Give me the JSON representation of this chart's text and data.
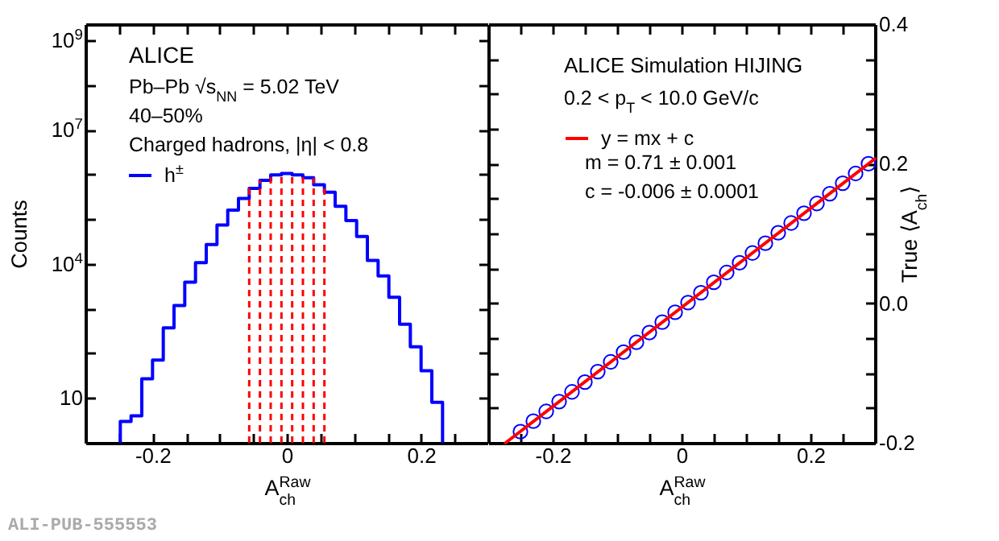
{
  "chart_data": [
    {
      "type": "histogram",
      "xlabel": "A$_{ch}$$^{Raw}$",
      "ylabel": "Counts",
      "log": "y",
      "legend": "top left",
      "bins": [
        -0.248,
        -0.232,
        -0.216,
        -0.2,
        -0.184,
        -0.168,
        -0.152,
        -0.136,
        -0.12,
        -0.104,
        -0.088,
        -0.072,
        -0.056,
        -0.04,
        -0.024,
        -0.008,
        0.008,
        0.024,
        0.04,
        0.056,
        0.072,
        0.088,
        0.104,
        0.12,
        0.136,
        0.152,
        0.168,
        0.184,
        0.2,
        0.216,
        0.232
      ],
      "series": [
        {
          "name": "h$^{±}$",
          "color": "#0000ff",
          "values": [
            3,
            4,
            27,
            71,
            370,
            1170,
            3900,
            10700,
            27000,
            74000,
            160000,
            290000,
            490000,
            740000,
            980000,
            1050000,
            980000,
            850000,
            590000,
            400000,
            195000,
            93000,
            41000,
            12000,
            5400,
            1800,
            450,
            140,
            41,
            8
          ]
        }
      ],
      "xlim": [
        -0.3,
        0.3
      ],
      "xticks": [
        {
          "value": -0.25,
          "label": null
        },
        -0.2,
        {
          "value": -0.15,
          "label": null
        },
        {
          "value": -0.1,
          "label": null
        },
        {
          "value": -0.05,
          "label": null
        },
        0,
        {
          "value": 0.05,
          "label": null
        },
        {
          "value": 0.1,
          "label": null
        },
        {
          "value": 0.15,
          "label": null
        },
        0.2,
        {
          "value": 0.25,
          "label": null
        }
      ],
      "ylim": [
        1,
        2300000000
      ],
      "yticks": [
        10,
        {
          "value": 100,
          "label": null
        },
        {
          "value": 1000,
          "label": null
        },
        {
          "value": 10000,
          "label": "10$^{4}$"
        },
        {
          "value": 100000,
          "label": null
        },
        {
          "value": 1000000,
          "label": null
        },
        {
          "value": 10000000,
          "label": "10$^{7}$"
        },
        {
          "value": 100000000,
          "label": null
        },
        {
          "value": 1000000000,
          "label": "10$^{9}$"
        }
      ],
      "ref_lines": [
        {
          "axis": "x",
          "value": -0.056,
          "color": "#ff0000",
          "line_style": "dashed"
        },
        {
          "axis": "x",
          "value": -0.04,
          "color": "#ff0000",
          "line_style": "dashed"
        },
        {
          "axis": "x",
          "value": -0.024,
          "color": "#ff0000",
          "line_style": "dashed"
        },
        {
          "axis": "x",
          "value": -0.008,
          "color": "#ff0000",
          "line_style": "dashed"
        },
        {
          "axis": "x",
          "value": 0.008,
          "color": "#ff0000",
          "line_style": "dashed"
        },
        {
          "axis": "x",
          "value": 0.024,
          "color": "#ff0000",
          "line_style": "dashed"
        },
        {
          "axis": "x",
          "value": 0.04,
          "color": "#ff0000",
          "line_style": "dashed"
        },
        {
          "axis": "x",
          "value": 0.056,
          "color": "#ff0000",
          "line_style": "dashed"
        }
      ],
      "annotations": [
        "ALICE",
        "Pb–Pb √s$_{NN}$ = 5.02 TeV",
        "40–50%",
        "Charged hadrons, |η| < 0.8",
        "ALI-PUB-555553"
      ]
    },
    {
      "type": "scatter",
      "xlabel": "A$_{ch}$$^{Raw}$",
      "y2label": "True ⟨A$_{ch}$⟩",
      "legend": "top left",
      "xlim": [
        -0.3,
        0.3
      ],
      "xticks": [
        {
          "value": -0.25,
          "label": null
        },
        -0.2,
        {
          "value": -0.15,
          "label": null
        },
        {
          "value": -0.1,
          "label": null
        },
        {
          "value": -0.05,
          "label": null
        },
        0,
        {
          "value": 0.05,
          "label": null
        },
        {
          "value": 0.1,
          "label": null
        },
        {
          "value": 0.15,
          "label": null
        },
        0.2,
        {
          "value": 0.25,
          "label": null
        }
      ],
      "y2lim": [
        -0.2,
        0.4
      ],
      "y2ticks": [
        -0.2,
        {
          "value": -0.15,
          "label": null
        },
        {
          "value": -0.1,
          "label": null
        },
        {
          "value": -0.05,
          "label": null
        },
        {
          "value": 0,
          "label": "0.0"
        },
        {
          "value": 0.05,
          "label": null
        },
        {
          "value": 0.1,
          "label": null
        },
        {
          "value": 0.15,
          "label": null
        },
        0.2,
        {
          "value": 0.25,
          "label": null
        },
        {
          "value": 0.3,
          "label": null
        },
        {
          "value": 0.35,
          "label": null
        },
        0.4
      ],
      "series": [
        {
          "type": "scatter",
          "axis": "y2",
          "color": "#0000ff",
          "marker": "circle",
          "x": [
            -0.25,
            -0.23,
            -0.21,
            -0.19,
            -0.17,
            -0.15,
            -0.13,
            -0.11,
            -0.09,
            -0.07,
            -0.05,
            -0.03,
            -0.01,
            0.01,
            0.03,
            0.05,
            0.07,
            0.09,
            0.11,
            0.13,
            0.15,
            0.17,
            0.19,
            0.21,
            0.23,
            0.25,
            0.27,
            0.29
          ],
          "values": [
            -0.184,
            -0.169,
            -0.155,
            -0.141,
            -0.127,
            -0.113,
            -0.098,
            -0.084,
            -0.07,
            -0.056,
            -0.042,
            -0.027,
            -0.013,
            0.001,
            0.015,
            0.03,
            0.044,
            0.058,
            0.072,
            0.086,
            0.101,
            0.115,
            0.129,
            0.143,
            0.157,
            0.172,
            0.186,
            0.2
          ]
        },
        {
          "type": "line",
          "axis": "y2",
          "name": "y = mx + c",
          "color": "#ff0000",
          "x": [
            -0.273,
            0.3
          ],
          "values": [
            -0.2,
            0.207
          ]
        }
      ],
      "annotations": [
        "ALICE Simulation HIJING",
        "0.2 < p$_{T}$ < 10.0 GeV/c",
        "m = 0.71 ± 0.001",
        "c = -0.006 ± 0.0001"
      ]
    }
  ]
}
